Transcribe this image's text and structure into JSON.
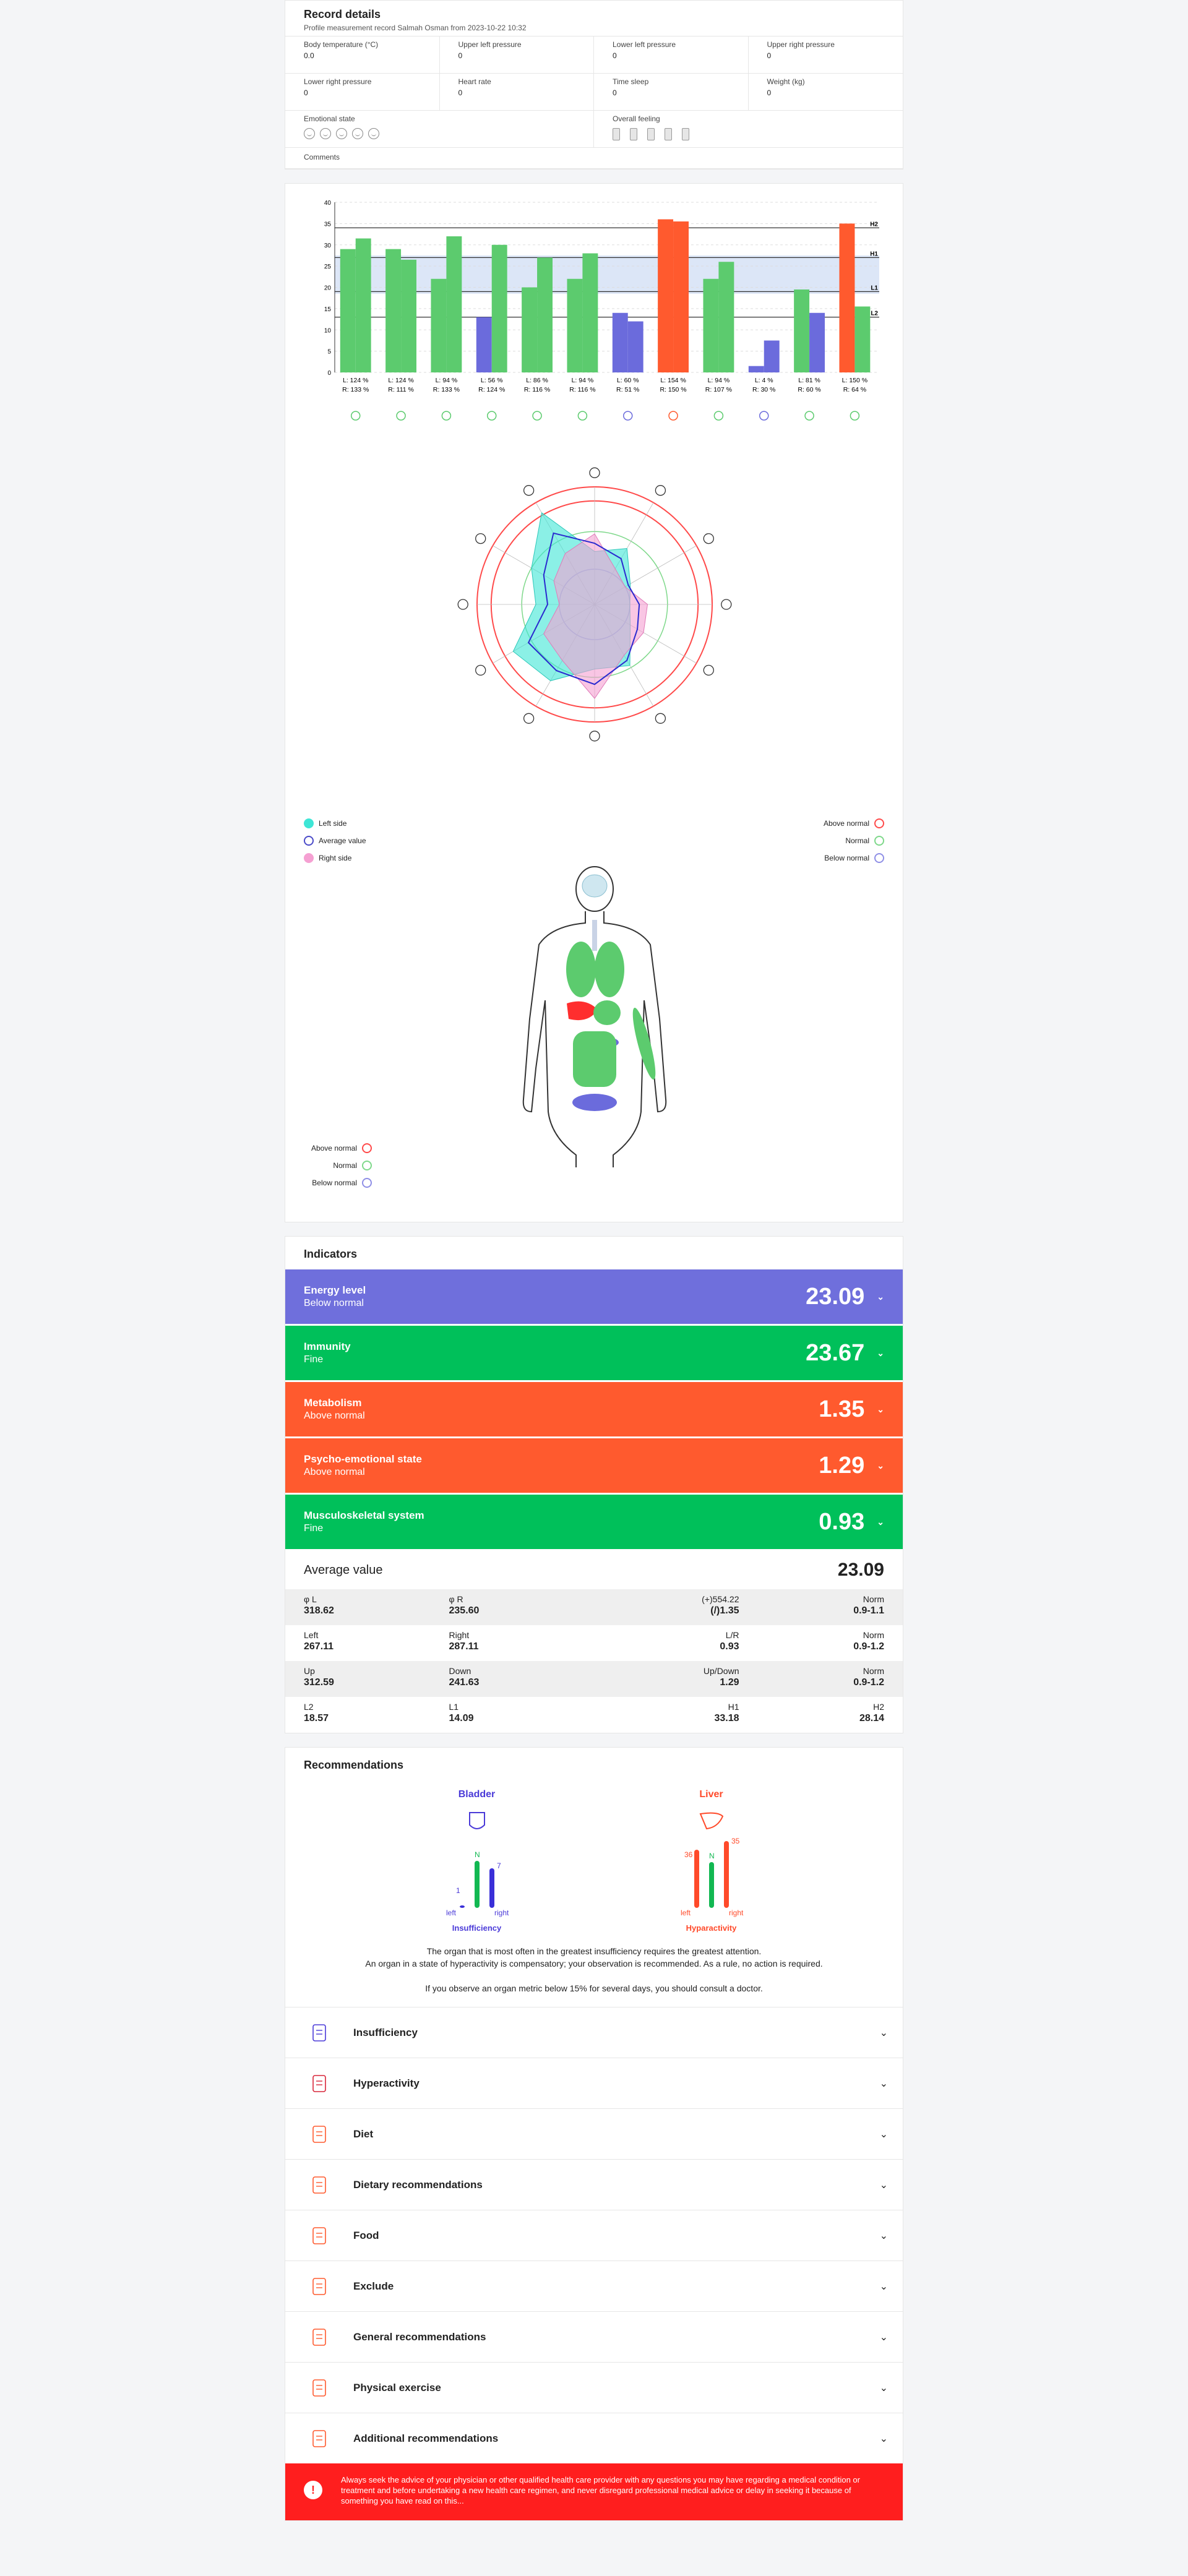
{
  "record": {
    "title": "Record details",
    "subtitle": "Profile measurement record Salmah Osman from 2023-10-22 10:32",
    "fields": [
      {
        "label": "Body temperature (°C)",
        "value": "0.0"
      },
      {
        "label": "Upper left pressure",
        "value": "0"
      },
      {
        "label": "Lower left pressure",
        "value": "0"
      },
      {
        "label": "Upper right pressure",
        "value": "0"
      },
      {
        "label": "Lower right pressure",
        "value": "0"
      },
      {
        "label": "Heart rate",
        "value": "0"
      },
      {
        "label": "Time sleep",
        "value": "0"
      },
      {
        "label": "Weight (kg)",
        "value": "0"
      }
    ],
    "emotional_label": "Emotional state",
    "feeling_label": "Overall feeling",
    "comments_label": "Comments"
  },
  "chart_data": {
    "type": "bar",
    "ylim": [
      0,
      40
    ],
    "yticks": [
      0,
      5,
      10,
      15,
      20,
      25,
      30,
      35,
      40
    ],
    "reference_lines": [
      {
        "name": "H2",
        "value": 34
      },
      {
        "name": "H1",
        "value": 27
      },
      {
        "name": "L1",
        "value": 19
      },
      {
        "name": "L2",
        "value": 13
      }
    ],
    "band": [
      18.5,
      27.5
    ],
    "categories": [
      "L: 124 %\nR: 133 %",
      "L: 124 %\nR: 111 %",
      "L: 94 %\nR: 133 %",
      "L: 56 %\nR: 124 %",
      "L: 86 %\nR: 116 %",
      "L: 94 %\nR: 116 %",
      "L: 60 %\nR: 51 %",
      "L: 154 %\nR: 150 %",
      "L: 94 %\nR: 107 %",
      "L: 4 %\nR: 30 %",
      "L: 81 %\nR: 60 %",
      "L: 150 %\nR: 64 %"
    ],
    "left": [
      29,
      29,
      22,
      13,
      20,
      22,
      14,
      36,
      22,
      1.5,
      19.5,
      35
    ],
    "right": [
      31.5,
      26.5,
      32,
      30,
      27,
      28,
      12,
      35.5,
      26,
      7.5,
      14,
      15.5
    ],
    "colors": {
      "normal": "#5ccb6e",
      "low": "#6b6bdc",
      "high": "#ff5a2e",
      "band": "#dce6f7"
    }
  },
  "radar": {
    "axes": 12,
    "left": [
      0.45,
      0.55,
      0.35,
      0.3,
      0.35,
      0.6,
      0.55,
      0.75,
      0.8,
      0.5,
      0.62,
      0.9
    ],
    "right": [
      0.6,
      0.35,
      0.3,
      0.45,
      0.48,
      0.5,
      0.8,
      0.55,
      0.5,
      0.3,
      0.4,
      0.5
    ],
    "average": [
      0.52,
      0.45,
      0.33,
      0.38,
      0.42,
      0.55,
      0.68,
      0.65,
      0.65,
      0.4,
      0.5,
      0.7
    ],
    "legend": {
      "left": "Left side",
      "average": "Average value",
      "right": "Right side",
      "above": "Above normal",
      "normal": "Normal",
      "below": "Below normal"
    }
  },
  "body": {
    "legend": {
      "above": "Above normal",
      "normal": "Normal",
      "below": "Below normal"
    }
  },
  "indicators": {
    "title": "Indicators",
    "items": [
      {
        "name": "Energy level",
        "status": "Below normal",
        "value": "23.09",
        "color": "#6f6fdc"
      },
      {
        "name": "Immunity",
        "status": "Fine",
        "value": "23.67",
        "color": "#00c05a"
      },
      {
        "name": "Metabolism",
        "status": "Above normal",
        "value": "1.35",
        "color": "#ff5a2e"
      },
      {
        "name": "Psycho-emotional state",
        "status": "Above normal",
        "value": "1.29",
        "color": "#ff5a2e"
      },
      {
        "name": "Musculoskeletal system",
        "status": "Fine",
        "value": "0.93",
        "color": "#00c05a"
      }
    ],
    "average_label": "Average value",
    "average_value": "23.09",
    "stats": [
      [
        {
          "l": "φ L",
          "v": "318.62"
        },
        {
          "l": "φ R",
          "v": "235.60"
        },
        {
          "l": "(+)554.22",
          "v": "(/)1.35"
        },
        {
          "l": "Norm",
          "v": "0.9-1.1"
        }
      ],
      [
        {
          "l": "Left",
          "v": "267.11"
        },
        {
          "l": "Right",
          "v": "287.11"
        },
        {
          "l": "L/R",
          "v": "0.93"
        },
        {
          "l": "Norm",
          "v": "0.9-1.2"
        }
      ],
      [
        {
          "l": "Up",
          "v": "312.59"
        },
        {
          "l": "Down",
          "v": "241.63"
        },
        {
          "l": "Up/Down",
          "v": "1.29"
        },
        {
          "l": "Norm",
          "v": "0.9-1.2"
        }
      ],
      [
        {
          "l": "L2",
          "v": "18.57"
        },
        {
          "l": "L1",
          "v": "14.09"
        },
        {
          "l": "H1",
          "v": "33.18"
        },
        {
          "l": "H2",
          "v": "28.14"
        }
      ]
    ]
  },
  "recommendations": {
    "title": "Recommendations",
    "bladder": {
      "name": "Bladder",
      "left": "1",
      "norm": "N",
      "right": "7",
      "left_label": "left",
      "right_label": "right",
      "state": "Insufficiency"
    },
    "liver": {
      "name": "Liver",
      "left": "36",
      "norm": "N",
      "right": "35",
      "left_label": "left",
      "right_label": "right",
      "state": "Hyparactivity"
    },
    "note1": "The organ that is most often in the greatest insufficiency requires the greatest attention.",
    "note2": "An organ in a state of hyperactivity is compensatory; your observation is recommended. As a rule, no action is required.",
    "note3": "If you observe an organ metric below 15% for several days, you should consult a doctor.",
    "sections": [
      "Insufficiency",
      "Hyperactivity",
      "Diet",
      "Dietary recommendations",
      "Food",
      "Exclude",
      "General recommendations",
      "Physical exercise",
      "Additional recommendations"
    ],
    "warning": "Always seek the advice of your physician or other qualified health care provider with any questions you may have regarding a medical condition or treatment and before undertaking a new health care regimen, and never disregard professional medical advice or delay in seeking it because of something you have read on this..."
  }
}
